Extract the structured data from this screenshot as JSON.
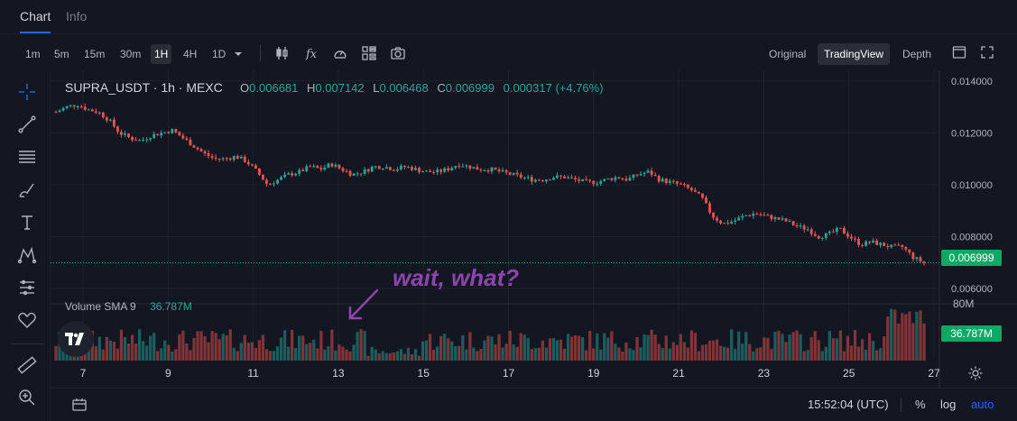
{
  "tabs": [
    {
      "label": "Chart",
      "active": true
    },
    {
      "label": "Info",
      "active": false
    }
  ],
  "timeframes": [
    "1m",
    "5m",
    "15m",
    "30m",
    "1H",
    "4H",
    "1D"
  ],
  "active_timeframe": "1H",
  "toolbar_icons": [
    "candles-icon",
    "indicators-fx-icon",
    "speed-icon",
    "layout-grid-icon",
    "camera-icon"
  ],
  "views": [
    "Original",
    "TradingView",
    "Depth"
  ],
  "active_view": "TradingView",
  "left_tools": [
    "crosshair-icon",
    "trend-line-icon",
    "horizontal-lines-icon",
    "brush-icon",
    "text-icon",
    "pattern-icon",
    "measure-icon",
    "heart-icon",
    "ruler-icon",
    "zoom-icon"
  ],
  "legend": {
    "symbol": "SUPRA_USDT · 1h · MEXC",
    "open_label": "O",
    "open": "0.006681",
    "high_label": "H",
    "high": "0.007142",
    "low_label": "L",
    "low": "0.006468",
    "close_label": "C",
    "close": "0.006999",
    "change": "0.000317 (+4.76%)"
  },
  "volume_legend": {
    "name": "Volume SMA 9",
    "value": "36.787M"
  },
  "annotation": "wait, what?",
  "price_axis_labels": [
    "0.014000",
    "0.012000",
    "0.010000",
    "0.008000",
    "0.006000"
  ],
  "volume_axis_label": "80M",
  "current_price_label": "0.006999",
  "current_volume_label": "36.787M",
  "time_axis_labels": [
    "7",
    "9",
    "11",
    "13",
    "15",
    "17",
    "19",
    "21",
    "23",
    "25",
    "27"
  ],
  "bottom": {
    "time": "15:52:04 (UTC)",
    "percent": "%",
    "log": "log",
    "auto": "auto"
  },
  "colors": {
    "up": "#26a69a",
    "down": "#ef5350",
    "background": "#131722",
    "grid": "#1f222b",
    "annotation": "#8e44ad",
    "accent": "#2962ff"
  },
  "chart_data": {
    "type": "candlestick",
    "ylim": [
      0.0058,
      0.0142
    ],
    "close_series": [
      0.0128,
      0.013,
      0.0131,
      0.0129,
      0.0128,
      0.0125,
      0.012,
      0.0118,
      0.0117,
      0.0119,
      0.012,
      0.0121,
      0.0118,
      0.0115,
      0.0112,
      0.011,
      0.011,
      0.0111,
      0.0109,
      0.0105,
      0.01,
      0.0102,
      0.0104,
      0.0105,
      0.0107,
      0.0106,
      0.0108,
      0.0106,
      0.0104,
      0.0105,
      0.0107,
      0.0107,
      0.0106,
      0.0107,
      0.0106,
      0.0105,
      0.0105,
      0.0106,
      0.0108,
      0.0107,
      0.0106,
      0.0106,
      0.0105,
      0.0104,
      0.0103,
      0.0102,
      0.0102,
      0.0103,
      0.0103,
      0.0102,
      0.0101,
      0.0101,
      0.0102,
      0.0103,
      0.0102,
      0.0104,
      0.0105,
      0.0102,
      0.0101,
      0.01,
      0.0098,
      0.0095,
      0.0088,
      0.0085,
      0.0086,
      0.0088,
      0.0089,
      0.0088,
      0.0087,
      0.0086,
      0.0084,
      0.0083,
      0.008,
      0.0081,
      0.0083,
      0.008,
      0.0077,
      0.0078,
      0.0077,
      0.0076,
      0.0076,
      0.0072,
      0.007
    ],
    "volume_max": 80,
    "volume_unit": "M"
  }
}
